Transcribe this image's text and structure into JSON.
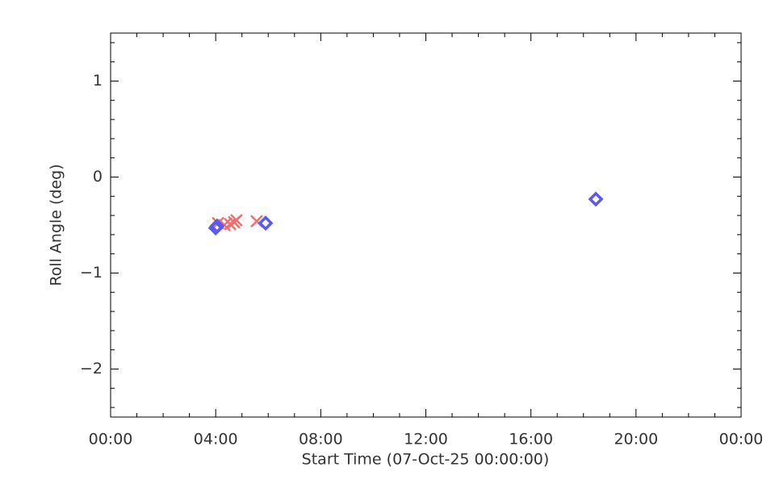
{
  "chart_data": {
    "type": "scatter",
    "xlabel": "Start Time (07-Oct-25 00:00:00)",
    "ylabel": "Roll Angle (deg)",
    "xlim": [
      0,
      24
    ],
    "xticks": [
      {
        "value": 0,
        "label": "00:00"
      },
      {
        "value": 4,
        "label": "04:00"
      },
      {
        "value": 8,
        "label": "08:00"
      },
      {
        "value": 12,
        "label": "12:00"
      },
      {
        "value": 16,
        "label": "16:00"
      },
      {
        "value": 20,
        "label": "20:00"
      },
      {
        "value": 24,
        "label": "00:00"
      }
    ],
    "ylim": [
      -2.5,
      1.5
    ],
    "yticks": [
      {
        "value": -2,
        "label": "−2"
      },
      {
        "value": -1,
        "label": "−1"
      },
      0,
      1
    ],
    "series": [
      {
        "marker": "x",
        "color": "#f07070",
        "x": [
          4.09,
          4.33,
          4.55,
          4.7,
          4.79,
          5.56
        ],
        "values": [
          -0.48,
          -0.5,
          -0.49,
          -0.47,
          -0.45,
          -0.46
        ]
      },
      {
        "marker": "diamond",
        "color": "#5a5af0",
        "x": [
          4.0,
          4.05,
          5.9,
          18.47
        ],
        "values": [
          -0.53,
          -0.51,
          -0.48,
          -0.23
        ]
      }
    ]
  }
}
